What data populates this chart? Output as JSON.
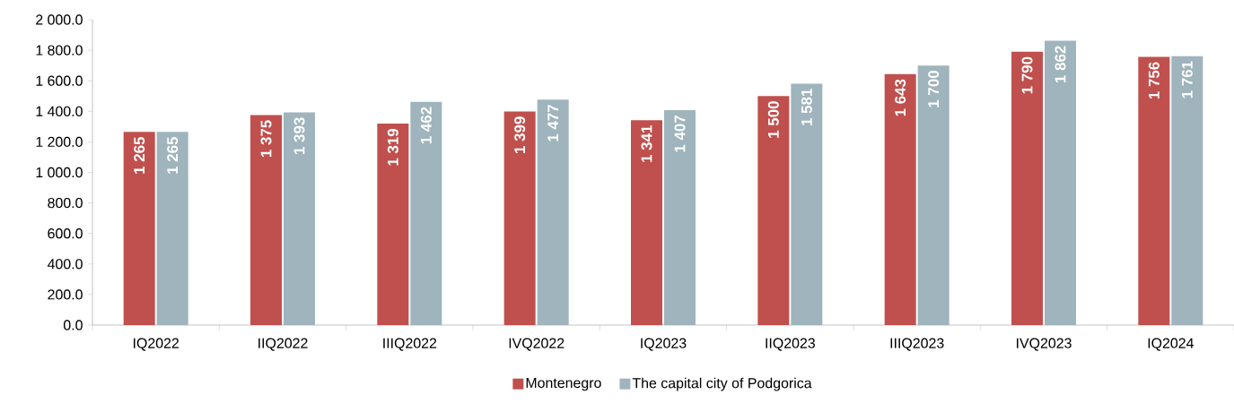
{
  "chart_data": {
    "type": "bar",
    "categories": [
      "IQ2022",
      "IIQ2022",
      "IIIQ2022",
      "IVQ2022",
      "IQ2023",
      "IIQ2023",
      "IIIQ2023",
      "IVQ2023",
      "IQ2024"
    ],
    "series": [
      {
        "name": "Montenegro",
        "color": "#c0504d",
        "values": [
          1265,
          1375,
          1319,
          1399,
          1341,
          1500,
          1643,
          1790,
          1756
        ],
        "value_labels": [
          "1 265",
          "1 375",
          "1 319",
          "1 399",
          "1 341",
          "1 500",
          "1 643",
          "1 790",
          "1 756"
        ]
      },
      {
        "name": "The capital city of Podgorica",
        "color": "#9fb4bc",
        "values": [
          1265,
          1393,
          1462,
          1477,
          1407,
          1581,
          1700,
          1862,
          1761
        ],
        "value_labels": [
          "1 265",
          "1 393",
          "1 462",
          "1 477",
          "1 407",
          "1 581",
          "1 700",
          "1 862",
          "1 761"
        ]
      }
    ],
    "ylim": [
      0,
      2000
    ],
    "yticks": [
      {
        "value": 0,
        "label": "0.0"
      },
      {
        "value": 200,
        "label": "200.0"
      },
      {
        "value": 400,
        "label": "400.0"
      },
      {
        "value": 600,
        "label": "600.0"
      },
      {
        "value": 800,
        "label": "800.0"
      },
      {
        "value": 1000,
        "label": "1 000.0"
      },
      {
        "value": 1200,
        "label": "1 200.0"
      },
      {
        "value": 1400,
        "label": "1 400.0"
      },
      {
        "value": 1600,
        "label": "1 600.0"
      },
      {
        "value": 1800,
        "label": "1 800.0"
      },
      {
        "value": 2000,
        "label": "2 000.0"
      }
    ],
    "legend": "bottom"
  }
}
